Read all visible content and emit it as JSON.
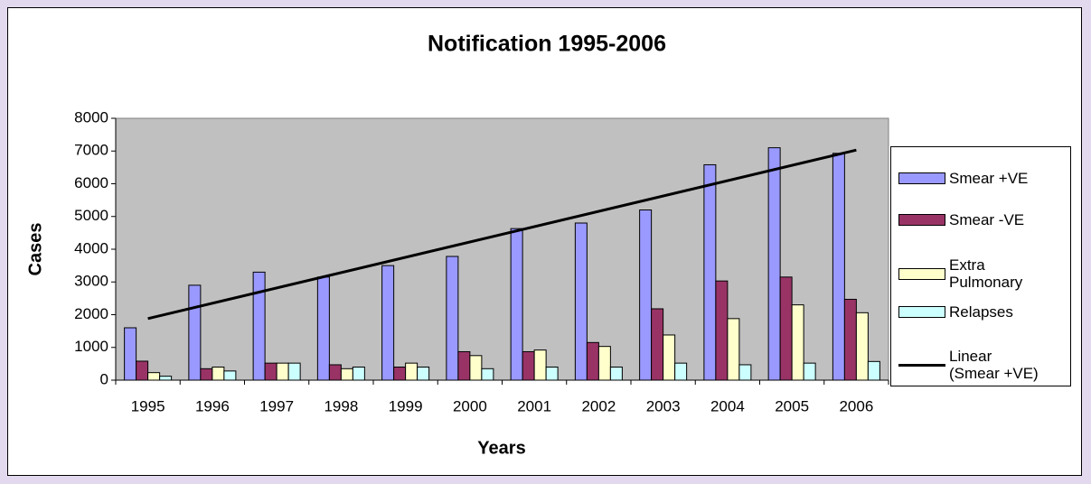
{
  "chart_data": {
    "type": "bar",
    "title": "Notification 1995-2006",
    "xlabel": "Years",
    "ylabel": "Cases",
    "categories": [
      "1995",
      "1996",
      "1997",
      "1998",
      "1999",
      "2000",
      "2001",
      "2002",
      "2003",
      "2004",
      "2005",
      "2006"
    ],
    "series": [
      {
        "name": "Smear +VE",
        "color": "#9999ff",
        "values": [
          1600,
          2900,
          3300,
          3150,
          3500,
          3780,
          4630,
          4800,
          5200,
          6580,
          7100,
          6930
        ]
      },
      {
        "name": "Smear -VE",
        "color": "#993366",
        "values": [
          580,
          350,
          520,
          470,
          400,
          870,
          870,
          1150,
          2180,
          3030,
          3150,
          2470
        ]
      },
      {
        "name": "Extra Pulmonary",
        "color": "#ffffcc",
        "values": [
          230,
          400,
          520,
          350,
          520,
          750,
          920,
          1030,
          1380,
          1880,
          2300,
          2060
        ]
      },
      {
        "name": "Relapses",
        "color": "#ccffff",
        "values": [
          120,
          280,
          520,
          400,
          400,
          350,
          400,
          400,
          520,
          470,
          520,
          570
        ]
      }
    ],
    "trendline": {
      "name": "Linear (Smear +VE)",
      "color": "#000000",
      "values": [
        1880,
        7030
      ]
    },
    "ylim": [
      0,
      8000
    ],
    "yticks": [
      0,
      1000,
      2000,
      3000,
      4000,
      5000,
      6000,
      7000,
      8000
    ],
    "plot_background": "#c0c0c0",
    "grid": false,
    "legend": "right"
  }
}
